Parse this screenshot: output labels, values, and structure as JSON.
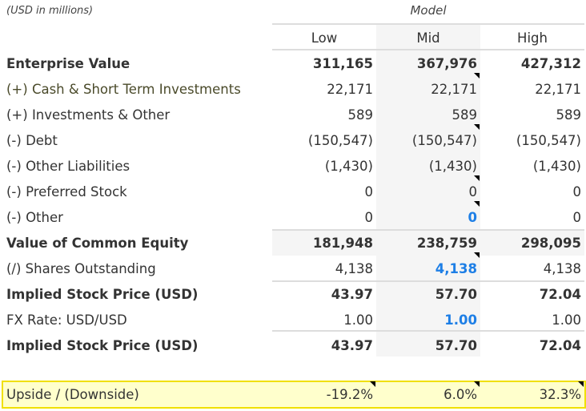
{
  "units": "(USD in millions)",
  "group_header": "Model",
  "columns": [
    "Low",
    "Mid",
    "High"
  ],
  "rows": [
    {
      "label": "Enterprise Value",
      "values": [
        "311,165",
        "367,976",
        "427,312"
      ]
    },
    {
      "label": "(+) Cash & Short Term Investments",
      "values": [
        "22,171",
        "22,171",
        "22,171"
      ]
    },
    {
      "label": "(+) Investments & Other",
      "values": [
        "589",
        "589",
        "589"
      ]
    },
    {
      "label": "(-) Debt",
      "values": [
        "(150,547)",
        "(150,547)",
        "(150,547)"
      ]
    },
    {
      "label": "(-) Other Liabilities",
      "values": [
        "(1,430)",
        "(1,430)",
        "(1,430)"
      ]
    },
    {
      "label": "(-) Preferred Stock",
      "values": [
        "0",
        "0",
        "0"
      ]
    },
    {
      "label": "(-) Other",
      "values": [
        "0",
        "0",
        "0"
      ]
    },
    {
      "label": "Value of Common Equity",
      "values": [
        "181,948",
        "238,759",
        "298,095"
      ]
    },
    {
      "label": "(/) Shares Outstanding",
      "values": [
        "4,138",
        "4,138",
        "4,138"
      ]
    },
    {
      "label": "Implied Stock Price (USD)",
      "values": [
        "43.97",
        "57.70",
        "72.04"
      ]
    },
    {
      "label": "FX Rate: USD/USD",
      "values": [
        "1.00",
        "1.00",
        "1.00"
      ]
    },
    {
      "label": "Implied Stock Price (USD)",
      "values": [
        "43.97",
        "57.70",
        "72.04"
      ]
    }
  ],
  "upside": {
    "label": "Upside / (Downside)",
    "values": [
      "-19.2%",
      "6.0%",
      "32.3%"
    ]
  },
  "colors": {
    "input_blue": "#1e7fe6",
    "highlight": "#ffffcc",
    "highlight_border": "#f0e000"
  }
}
